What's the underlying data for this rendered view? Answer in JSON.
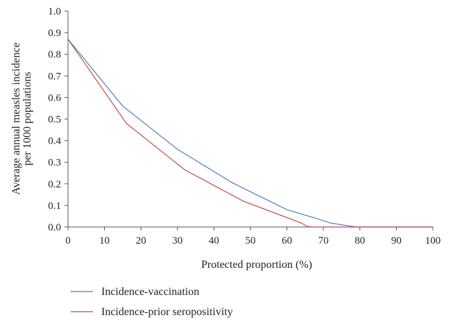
{
  "chart_data": {
    "type": "line",
    "title": "",
    "xlabel": "Protected proportion (%)",
    "ylabel_lines": [
      "Average annual measles incidence",
      "per 1000 populations"
    ],
    "xlim": [
      0,
      100
    ],
    "ylim": [
      0,
      1.0
    ],
    "x_ticks": [
      0,
      10,
      20,
      30,
      40,
      50,
      60,
      70,
      80,
      90,
      100
    ],
    "x_tick_labels": [
      "0",
      "10",
      "20",
      "30",
      "40",
      "50",
      "60",
      "70",
      "80",
      "90",
      "100"
    ],
    "y_ticks": [
      0,
      0.1,
      0.2,
      0.3,
      0.4,
      0.5,
      0.6,
      0.7,
      0.8,
      0.9,
      1.0
    ],
    "y_tick_labels": [
      "0.0",
      "0.1",
      "0.2",
      "0.3",
      "0.4",
      "0.5",
      "0.6",
      "0.7",
      "0.8",
      "0.9",
      "1.0"
    ],
    "grid": false,
    "legend_position": "bottom",
    "series": [
      {
        "name": "Incidence-vaccination",
        "color": "#4a7ebb",
        "x": [
          0,
          15,
          30,
          45,
          60,
          65,
          68,
          72,
          79,
          100
        ],
        "y": [
          0.87,
          0.56,
          0.36,
          0.205,
          0.08,
          0.055,
          0.04,
          0.018,
          0.0,
          0.0
        ]
      },
      {
        "name": "Incidence-prior seropositivity",
        "color": "#be4b48",
        "x": [
          0,
          16,
          32,
          48,
          64,
          65.5,
          67,
          100
        ],
        "y": [
          0.87,
          0.48,
          0.265,
          0.12,
          0.018,
          0.003,
          0.0,
          0.0
        ]
      }
    ]
  }
}
